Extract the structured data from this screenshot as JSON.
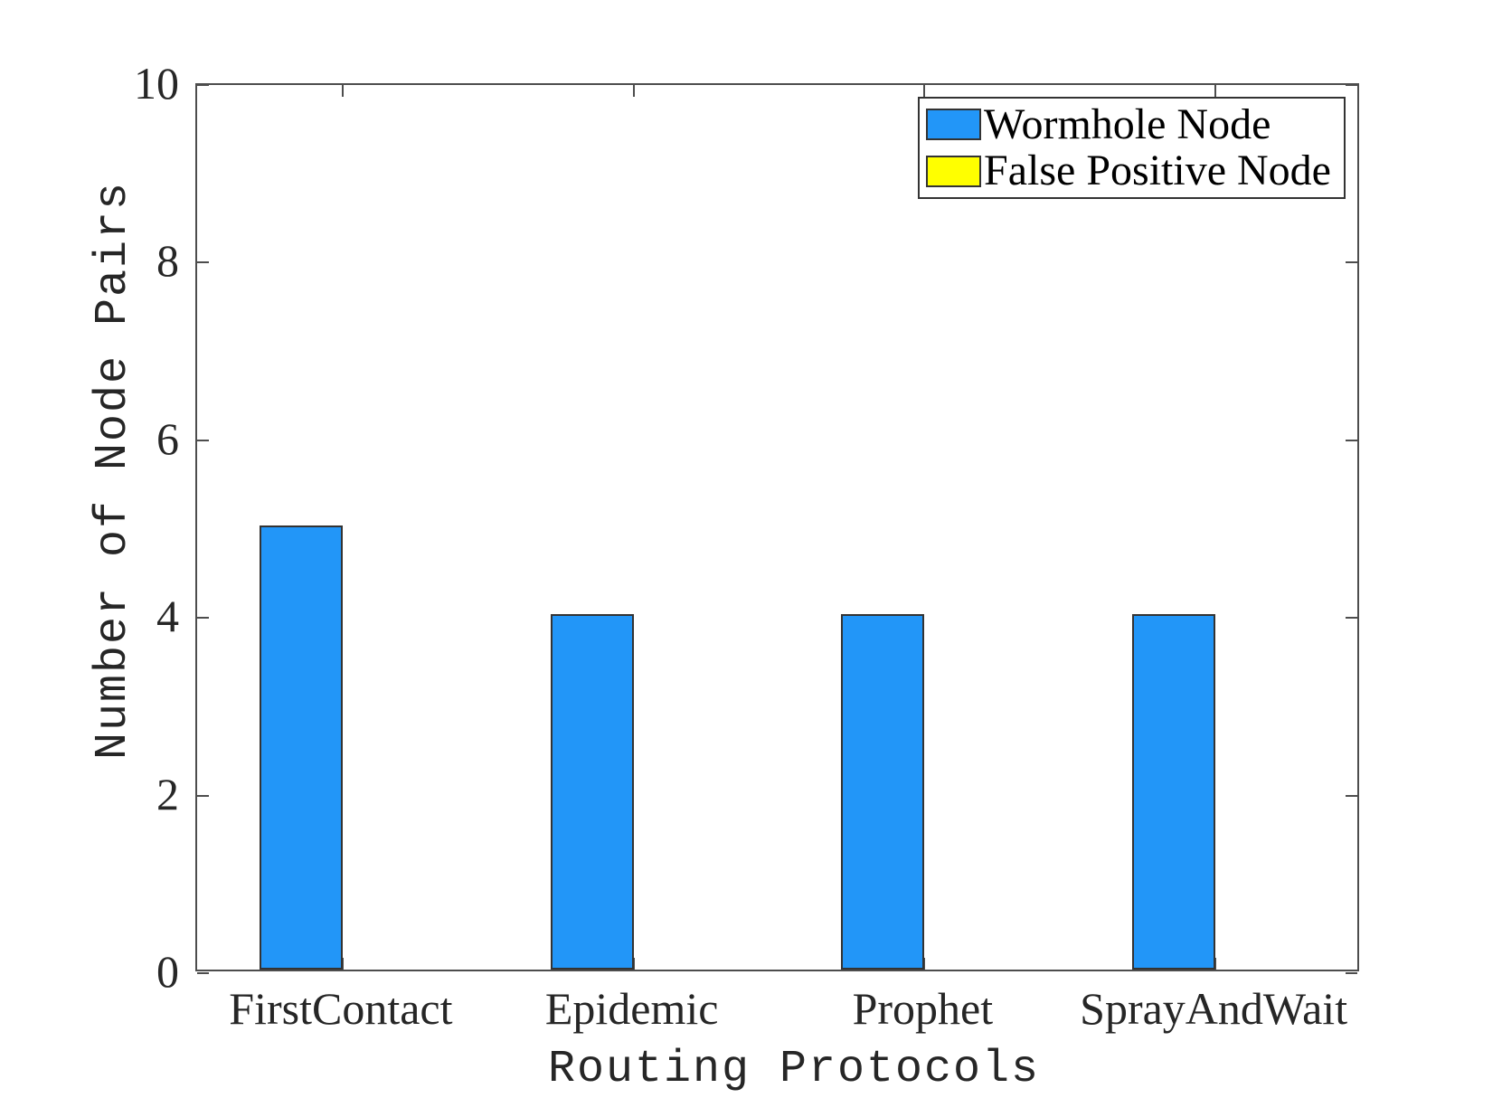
{
  "chart_data": {
    "type": "bar",
    "title": "",
    "xlabel": "Routing Protocols",
    "ylabel": "Number of Node Pairs",
    "categories": [
      "FirstContact",
      "Epidemic",
      "Prophet",
      "SprayAndWait"
    ],
    "series": [
      {
        "name": "Wormhole Node",
        "color": "#2296F8",
        "values": [
          5,
          4,
          4,
          4
        ]
      },
      {
        "name": "False Positive Node",
        "color": "#FFFF00",
        "values": [
          0,
          0,
          0,
          0
        ]
      }
    ],
    "ylim": [
      0,
      10
    ],
    "yticks": [
      0,
      2,
      4,
      6,
      8,
      10
    ],
    "grid": false,
    "legend_position": "top-right",
    "bar_mode": "grouped",
    "colors": {
      "bar_edge": "#333333",
      "axis": "#4D4D4D",
      "tick_text": "#262626",
      "legend_border": "#333333",
      "legend_text": "#000000",
      "background": "#FFFFFF"
    }
  }
}
